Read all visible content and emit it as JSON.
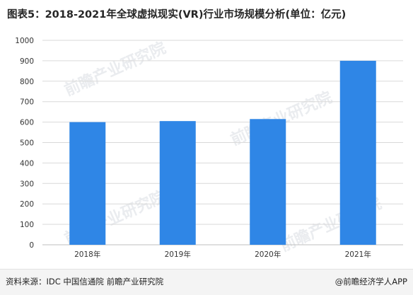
{
  "chart_data": {
    "type": "bar",
    "title": "图表5：2018-2021年全球虚拟现实(VR)行业市场规模分析(单位：亿元)",
    "categories": [
      "2018年",
      "2019年",
      "2020年",
      "2021年"
    ],
    "values": [
      600,
      605,
      615,
      900
    ],
    "ylim": [
      0,
      1000
    ],
    "yticks": [
      0,
      100,
      200,
      300,
      400,
      500,
      600,
      700,
      800,
      900,
      1000
    ],
    "grid": true,
    "bar_color": "#2f86e6",
    "grid_color": "#d9d9d9"
  },
  "footer": {
    "source": "资料来源：IDC 中国信通院 前瞻产业研究院",
    "credit": "@前瞻经济学人APP"
  },
  "watermark": {
    "text": "前瞻产业研究院"
  }
}
